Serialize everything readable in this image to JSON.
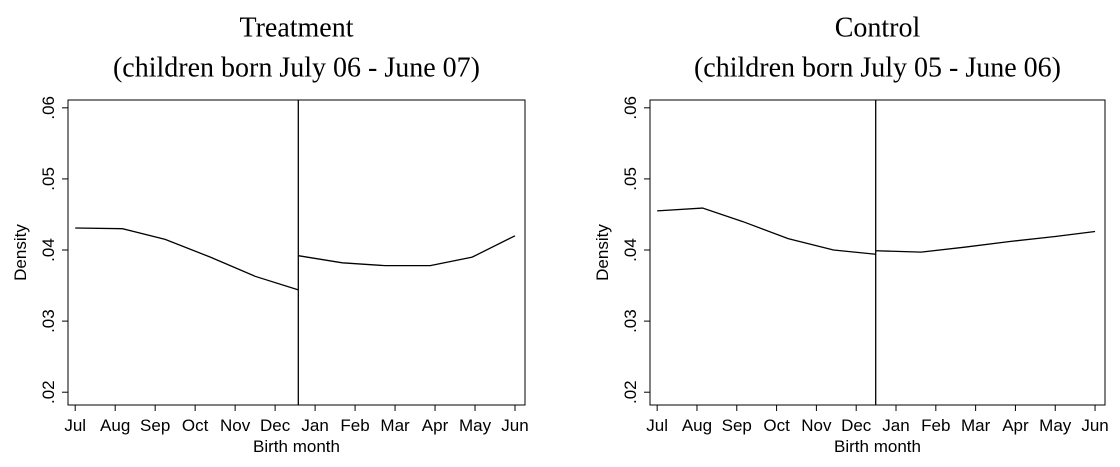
{
  "chart_data": [
    {
      "type": "line",
      "title": [
        "Treatment",
        "(children born July 06 - June 07)"
      ],
      "xlabel": "Birth month",
      "ylabel": "Density",
      "xlim": [
        0.82,
        12.25
      ],
      "xticks": [
        {
          "value": 1,
          "label": "Jul"
        },
        {
          "value": 2,
          "label": "Aug"
        },
        {
          "value": 3,
          "label": "Sep"
        },
        {
          "value": 4,
          "label": "Oct"
        },
        {
          "value": 5,
          "label": "Nov"
        },
        {
          "value": 6,
          "label": "Dec"
        },
        {
          "value": 7,
          "label": "Jan"
        },
        {
          "value": 8,
          "label": "Feb"
        },
        {
          "value": 9,
          "label": "Mar"
        },
        {
          "value": 10,
          "label": "Apr"
        },
        {
          "value": 11,
          "label": "May"
        },
        {
          "value": 12,
          "label": "Jun"
        }
      ],
      "ylim": [
        0.0182,
        0.0611
      ],
      "yticks": [
        {
          "value": 0.02,
          "label": ".02"
        },
        {
          "value": 0.03,
          "label": ".03"
        },
        {
          "value": 0.04,
          "label": ".04"
        },
        {
          "value": 0.05,
          "label": ".05"
        },
        {
          "value": 0.06,
          "label": ".06"
        }
      ],
      "vline": 6.58,
      "color": "#000000",
      "segments": [
        {
          "x": [
            1,
            2.18,
            3.25,
            4.38,
            5.5,
            6.58
          ],
          "values": [
            0.0431,
            0.043,
            0.0415,
            0.039,
            0.0363,
            0.0344
          ]
        },
        {
          "x": [
            6.58,
            7.68,
            8.75,
            9.88,
            10.93,
            12
          ],
          "values": [
            0.0392,
            0.0382,
            0.0378,
            0.0378,
            0.039,
            0.042
          ]
        }
      ]
    },
    {
      "type": "line",
      "title": [
        "Control",
        "(children born July 05 - June 06)"
      ],
      "xlabel": "Birth month",
      "ylabel": "Density",
      "xlim": [
        0.82,
        12.25
      ],
      "xticks": [
        {
          "value": 1,
          "label": "Jul"
        },
        {
          "value": 2,
          "label": "Aug"
        },
        {
          "value": 3,
          "label": "Sep"
        },
        {
          "value": 4,
          "label": "Oct"
        },
        {
          "value": 5,
          "label": "Nov"
        },
        {
          "value": 6,
          "label": "Dec"
        },
        {
          "value": 7,
          "label": "Jan"
        },
        {
          "value": 8,
          "label": "Feb"
        },
        {
          "value": 9,
          "label": "Mar"
        },
        {
          "value": 10,
          "label": "Apr"
        },
        {
          "value": 11,
          "label": "May"
        },
        {
          "value": 12,
          "label": "Jun"
        }
      ],
      "ylim": [
        0.0182,
        0.0611
      ],
      "yticks": [
        {
          "value": 0.02,
          "label": ".02"
        },
        {
          "value": 0.03,
          "label": ".03"
        },
        {
          "value": 0.04,
          "label": ".04"
        },
        {
          "value": 0.05,
          "label": ".05"
        },
        {
          "value": 0.06,
          "label": ".06"
        }
      ],
      "vline": 6.49,
      "color": "#000000",
      "segments": [
        {
          "x": [
            1,
            2.14,
            3.15,
            4.29,
            5.43,
            6.49
          ],
          "values": [
            0.0455,
            0.0459,
            0.044,
            0.0416,
            0.04,
            0.0394
          ]
        },
        {
          "x": [
            6.49,
            7.63,
            8.72,
            9.86,
            11,
            12
          ],
          "values": [
            0.0399,
            0.0397,
            0.0404,
            0.0412,
            0.0419,
            0.0426
          ]
        }
      ]
    }
  ]
}
